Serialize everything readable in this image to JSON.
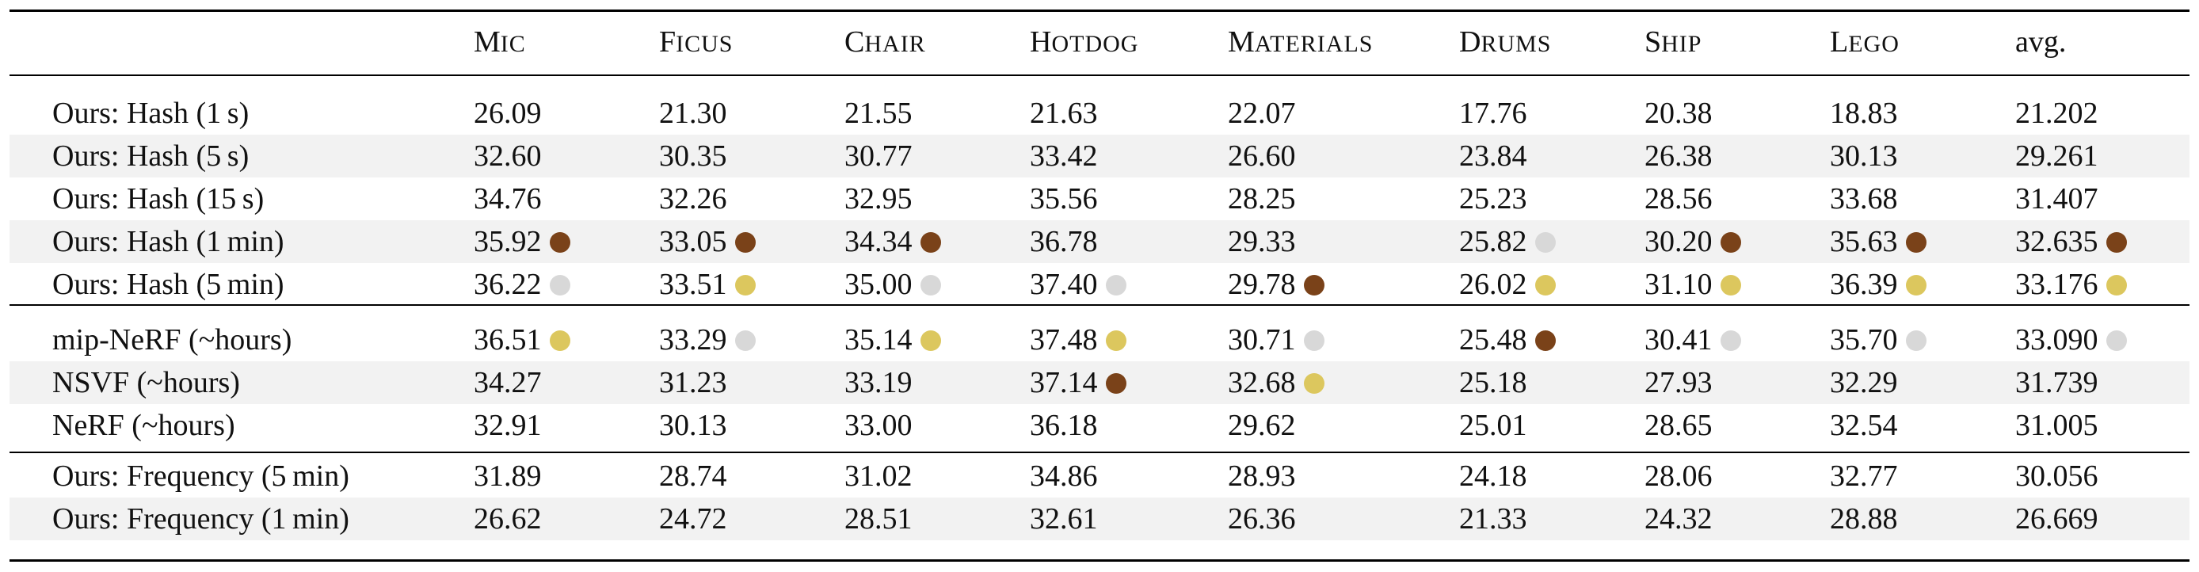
{
  "colors": {
    "bronze": "#7a4219",
    "silver": "#d8d8d8",
    "gold": "#dcc75e",
    "shade": "#f2f2f2",
    "rule": "#000000"
  },
  "header": {
    "columns": [
      {
        "first": "M",
        "rest": "IC"
      },
      {
        "first": "F",
        "rest": "ICUS"
      },
      {
        "first": "C",
        "rest": "HAIR"
      },
      {
        "first": "H",
        "rest": "OTDOG"
      },
      {
        "first": "M",
        "rest": "ATERIALS"
      },
      {
        "first": "D",
        "rest": "RUMS"
      },
      {
        "first": "S",
        "rest": "HIP"
      },
      {
        "first": "L",
        "rest": "EGO"
      },
      {
        "first": "avg.",
        "rest": ""
      }
    ]
  },
  "groups": [
    {
      "rows": [
        {
          "label": "Ours: Hash (1 s)",
          "values": [
            "26.09",
            "21.30",
            "21.55",
            "21.63",
            "22.07",
            "17.76",
            "20.38",
            "18.83",
            "21.202"
          ],
          "medals": [
            null,
            null,
            null,
            null,
            null,
            null,
            null,
            null,
            null
          ]
        },
        {
          "label": "Ours: Hash (5 s)",
          "values": [
            "32.60",
            "30.35",
            "30.77",
            "33.42",
            "26.60",
            "23.84",
            "26.38",
            "30.13",
            "29.261"
          ],
          "medals": [
            null,
            null,
            null,
            null,
            null,
            null,
            null,
            null,
            null
          ]
        },
        {
          "label": "Ours: Hash (15 s)",
          "values": [
            "34.76",
            "32.26",
            "32.95",
            "35.56",
            "28.25",
            "25.23",
            "28.56",
            "33.68",
            "31.407"
          ],
          "medals": [
            null,
            null,
            null,
            null,
            null,
            null,
            null,
            null,
            null
          ]
        },
        {
          "label": "Ours: Hash (1 min)",
          "values": [
            "35.92",
            "33.05",
            "34.34",
            "36.78",
            "29.33",
            "25.82",
            "30.20",
            "35.63",
            "32.635"
          ],
          "medals": [
            "bronze",
            "bronze",
            "bronze",
            null,
            null,
            "silver",
            "bronze",
            "bronze",
            "bronze"
          ]
        },
        {
          "label": "Ours: Hash (5 min)",
          "values": [
            "36.22",
            "33.51",
            "35.00",
            "37.40",
            "29.78",
            "26.02",
            "31.10",
            "36.39",
            "33.176"
          ],
          "medals": [
            "silver",
            "gold",
            "silver",
            "silver",
            "bronze",
            "gold",
            "gold",
            "gold",
            "gold"
          ]
        }
      ]
    },
    {
      "rows": [
        {
          "label": "mip-NeRF (~hours)",
          "values": [
            "36.51",
            "33.29",
            "35.14",
            "37.48",
            "30.71",
            "25.48",
            "30.41",
            "35.70",
            "33.090"
          ],
          "medals": [
            "gold",
            "silver",
            "gold",
            "gold",
            "silver",
            "bronze",
            "silver",
            "silver",
            "silver"
          ]
        },
        {
          "label": "NSVF (~hours)",
          "values": [
            "34.27",
            "31.23",
            "33.19",
            "37.14",
            "32.68",
            "25.18",
            "27.93",
            "32.29",
            "31.739"
          ],
          "medals": [
            null,
            null,
            null,
            "bronze",
            "gold",
            null,
            null,
            null,
            null
          ]
        },
        {
          "label": "NeRF (~hours)",
          "values": [
            "32.91",
            "30.13",
            "33.00",
            "36.18",
            "29.62",
            "25.01",
            "28.65",
            "32.54",
            "31.005"
          ],
          "medals": [
            null,
            null,
            null,
            null,
            null,
            null,
            null,
            null,
            null
          ]
        }
      ]
    },
    {
      "rows": [
        {
          "label": "Ours: Frequency (5 min)",
          "values": [
            "31.89",
            "28.74",
            "31.02",
            "34.86",
            "28.93",
            "24.18",
            "28.06",
            "32.77",
            "30.056"
          ],
          "medals": [
            null,
            null,
            null,
            null,
            null,
            null,
            null,
            null,
            null
          ]
        },
        {
          "label": "Ours: Frequency (1 min)",
          "values": [
            "26.62",
            "24.72",
            "28.51",
            "32.61",
            "26.36",
            "21.33",
            "24.32",
            "28.88",
            "26.669"
          ],
          "medals": [
            null,
            null,
            null,
            null,
            null,
            null,
            null,
            null,
            null
          ]
        }
      ]
    }
  ]
}
